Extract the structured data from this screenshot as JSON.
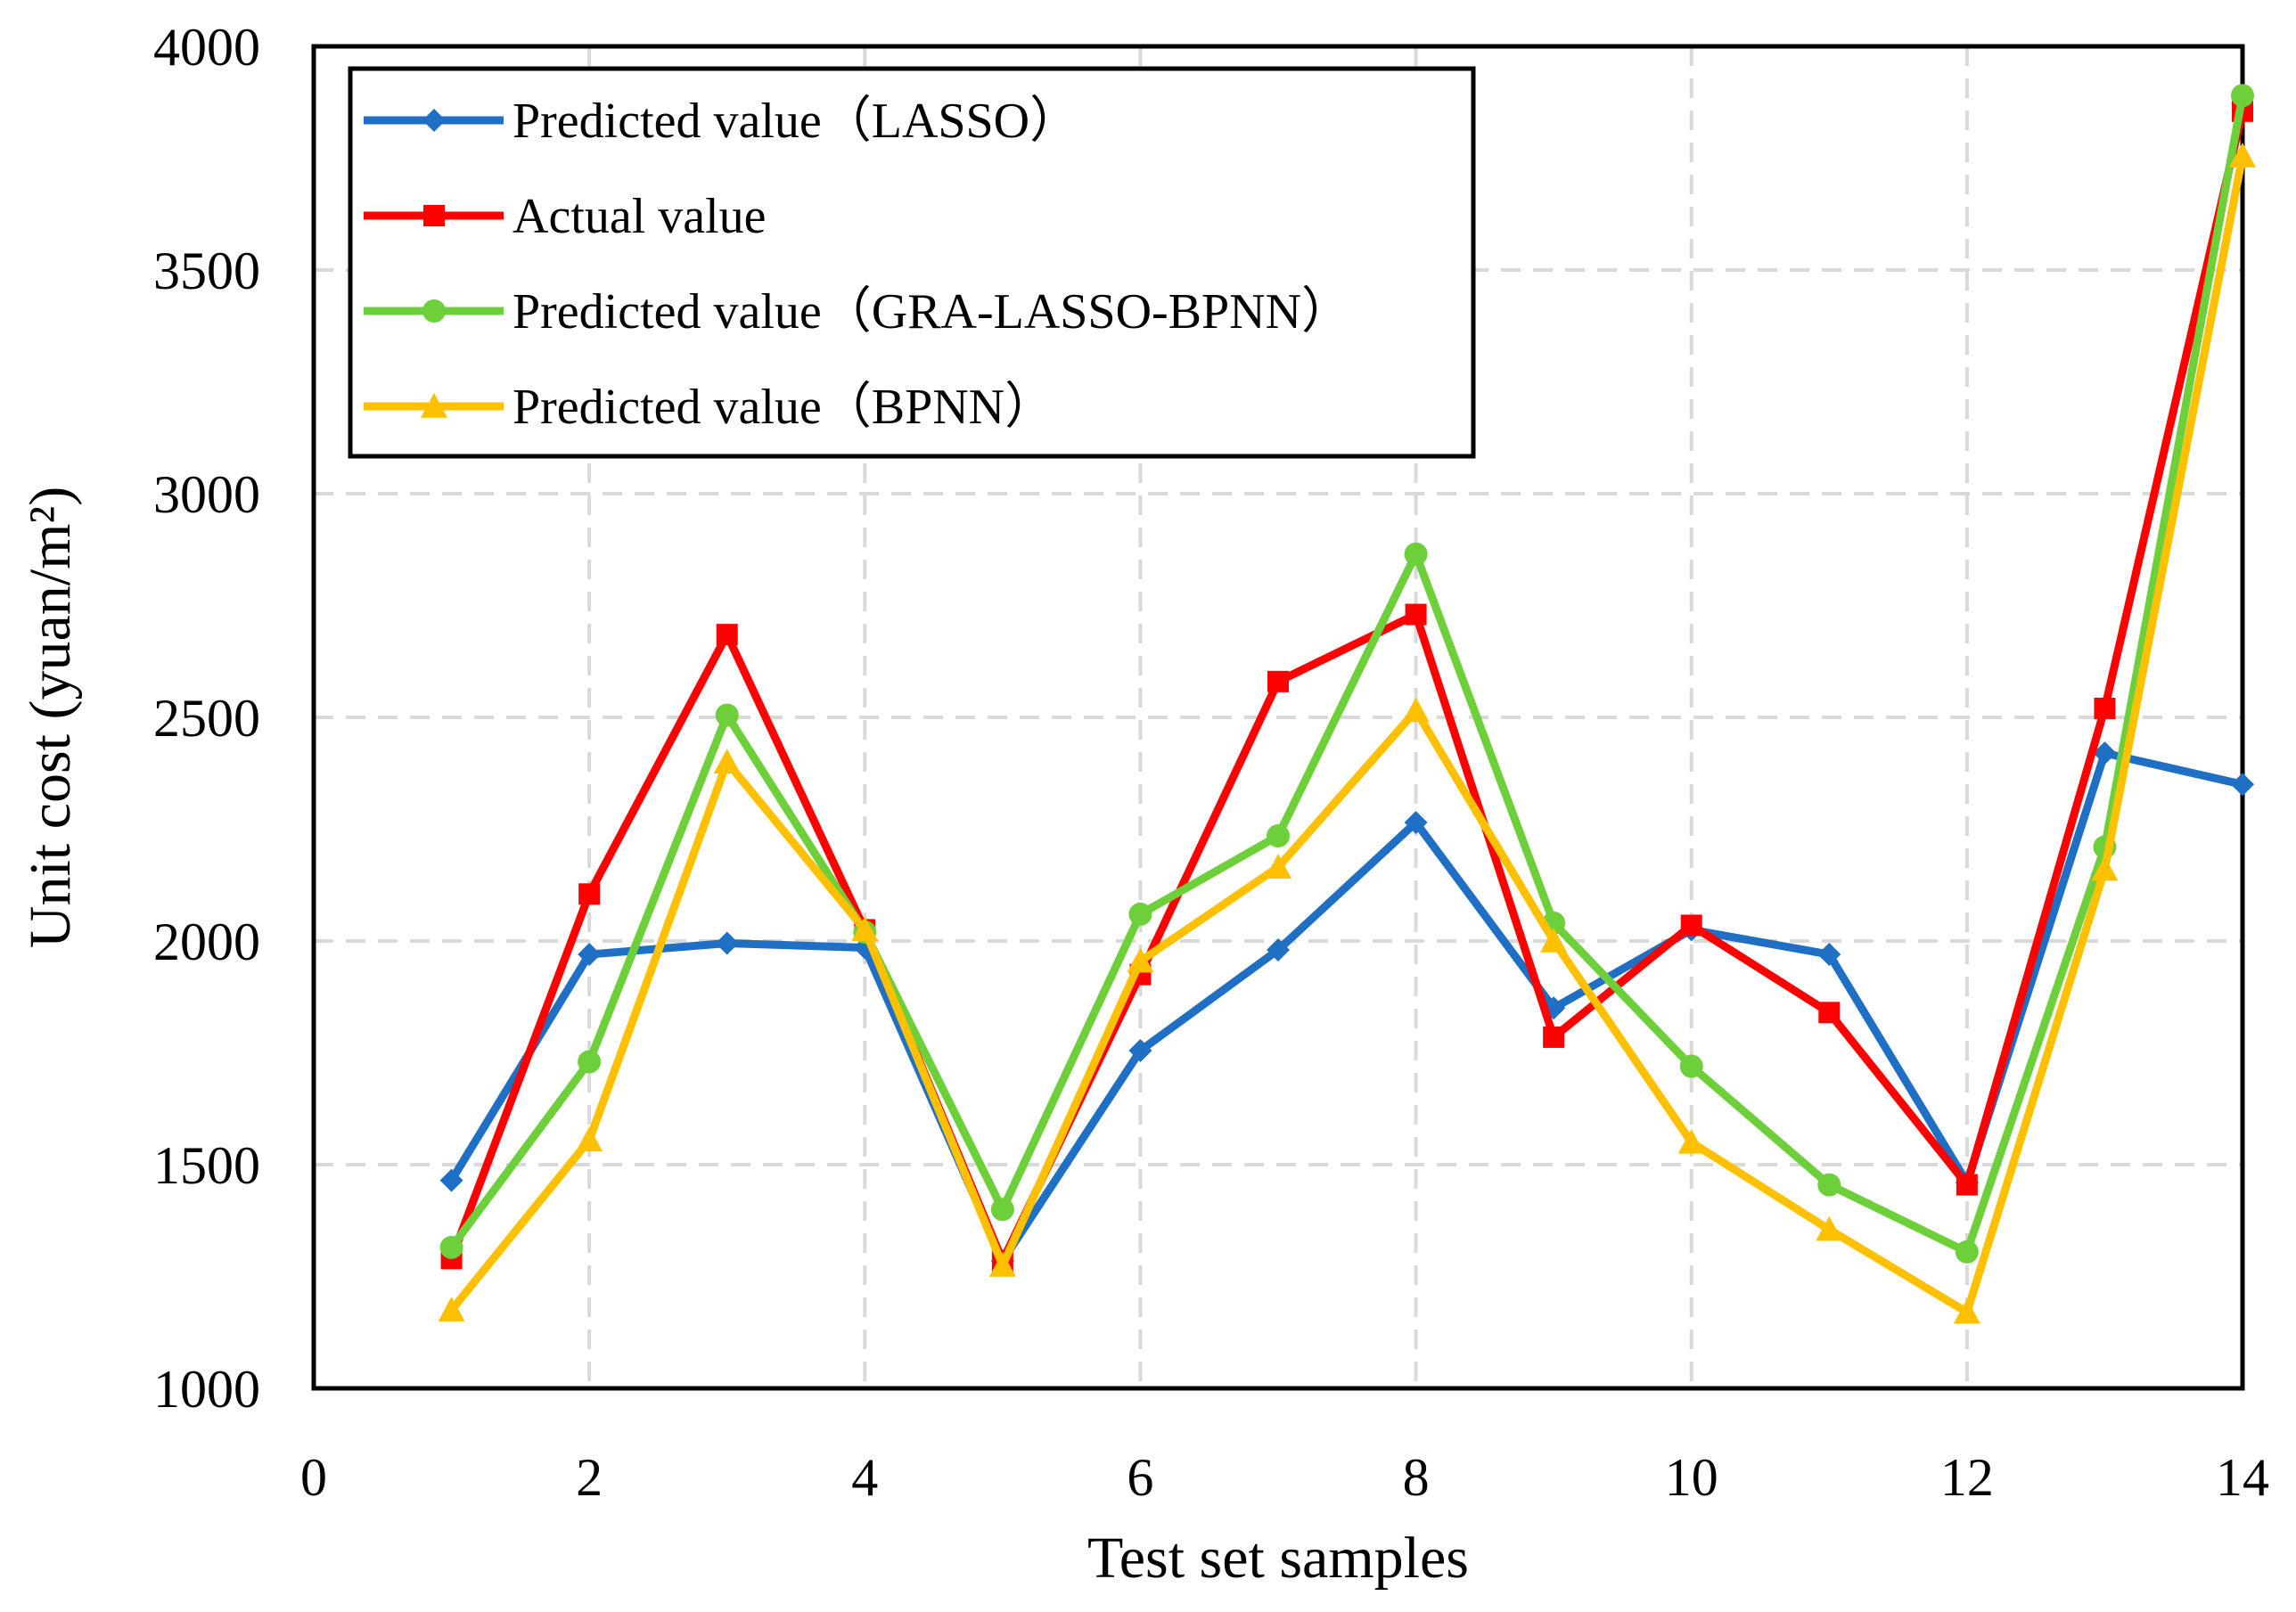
{
  "chart_data": {
    "type": "line",
    "title": "",
    "xlabel": "Test set samples",
    "ylabel": "Unit cost (yuan/m²)",
    "xlim": [
      0,
      14
    ],
    "ylim": [
      1000,
      4000
    ],
    "xticks": [
      0,
      2,
      4,
      6,
      8,
      10,
      12,
      14
    ],
    "yticks": [
      1000,
      1500,
      2000,
      2500,
      3000,
      3500,
      4000
    ],
    "grid": true,
    "legend_position": "top-left",
    "x": [
      1,
      2,
      3,
      4,
      5,
      6,
      7,
      8,
      9,
      10,
      11,
      12,
      13,
      14
    ],
    "series": [
      {
        "name": "Predicted value（LASSO）",
        "color": "#1f6fc5",
        "marker": "diamond",
        "values": [
          1465,
          1970,
          1995,
          1985,
          1285,
          1755,
          1980,
          2265,
          1850,
          2025,
          1970,
          1460,
          2420,
          2350
        ]
      },
      {
        "name": "Actual value",
        "color": "#ff0000",
        "marker": "square",
        "values": [
          1290,
          2105,
          2685,
          2025,
          1285,
          1925,
          2580,
          2730,
          1785,
          2035,
          1840,
          1455,
          2520,
          3855
        ]
      },
      {
        "name": "Predicted value（GRA-LASSO-BPNN）",
        "color": "#6dd03b",
        "marker": "circle",
        "values": [
          1315,
          1730,
          2505,
          2020,
          1400,
          2060,
          2235,
          2865,
          2040,
          1720,
          1455,
          1305,
          2210,
          3890
        ]
      },
      {
        "name": "Predicted value（BPNN）",
        "color": "#ffc000",
        "marker": "triangle",
        "values": [
          1175,
          1555,
          2400,
          2025,
          1275,
          1955,
          2165,
          2515,
          2000,
          1550,
          1355,
          1170,
          2160,
          3755
        ]
      }
    ]
  }
}
